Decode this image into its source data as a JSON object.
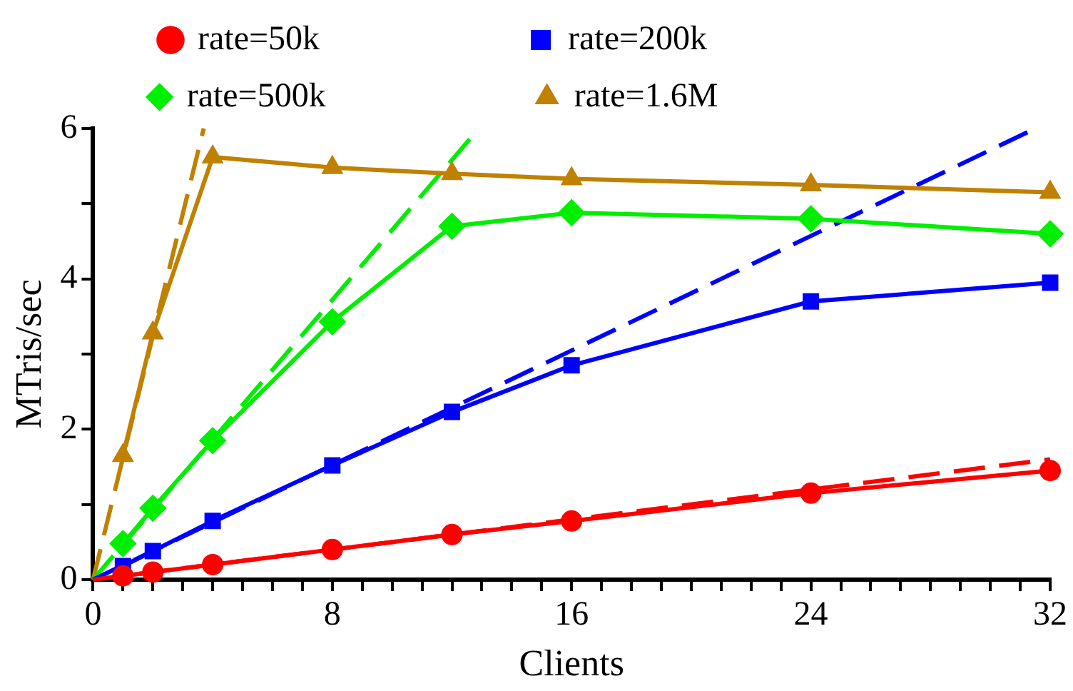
{
  "chart_data": {
    "type": "line",
    "xlabel": "Clients",
    "ylabel": "MTris/sec",
    "legend": "top",
    "grid": false,
    "x": [
      1,
      2,
      4,
      8,
      12,
      16,
      24,
      32
    ],
    "xlim": [
      0,
      32
    ],
    "xticks": [
      0,
      {
        "value": 1,
        "label": null
      },
      {
        "value": 2,
        "label": null
      },
      {
        "value": 3,
        "label": null
      },
      {
        "value": 4,
        "label": null
      },
      {
        "value": 5,
        "label": null
      },
      {
        "value": 6,
        "label": null
      },
      {
        "value": 7,
        "label": null
      },
      8,
      {
        "value": 9,
        "label": null
      },
      {
        "value": 10,
        "label": null
      },
      {
        "value": 11,
        "label": null
      },
      {
        "value": 12,
        "label": null
      },
      {
        "value": 13,
        "label": null
      },
      {
        "value": 14,
        "label": null
      },
      {
        "value": 15,
        "label": null
      },
      16,
      {
        "value": 17,
        "label": null
      },
      {
        "value": 18,
        "label": null
      },
      {
        "value": 19,
        "label": null
      },
      {
        "value": 20,
        "label": null
      },
      {
        "value": 21,
        "label": null
      },
      {
        "value": 22,
        "label": null
      },
      {
        "value": 23,
        "label": null
      },
      24,
      {
        "value": 25,
        "label": null
      },
      {
        "value": 26,
        "label": null
      },
      {
        "value": 27,
        "label": null
      },
      {
        "value": 28,
        "label": null
      },
      {
        "value": 29,
        "label": null
      },
      {
        "value": 30,
        "label": null
      },
      {
        "value": 31,
        "label": null
      },
      32
    ],
    "ylim": [
      0,
      6
    ],
    "yticks": [
      0,
      {
        "value": 1,
        "label": null
      },
      2,
      {
        "value": 3,
        "label": null
      },
      4,
      {
        "value": 5,
        "label": null
      },
      6
    ],
    "series": [
      {
        "name": "rate=50k",
        "color": "#ff0000",
        "marker": "circle",
        "line_style": "solid",
        "values": [
          0.05,
          0.1,
          0.2,
          0.4,
          0.6,
          0.78,
          1.15,
          1.45
        ]
      },
      {
        "name": "rate=200k",
        "color": "#0000ff",
        "marker": "square",
        "line_style": "solid",
        "values": [
          0.18,
          0.38,
          0.78,
          1.52,
          2.23,
          2.85,
          3.7,
          3.95
        ]
      },
      {
        "name": "rate=500k",
        "color": "#00ee00",
        "marker": "diamond",
        "line_style": "solid",
        "values": [
          0.48,
          0.95,
          1.85,
          3.43,
          4.7,
          4.88,
          4.8,
          4.6
        ]
      },
      {
        "name": "rate=1.6M",
        "color": "#c08000",
        "marker": "triangle",
        "line_style": "solid",
        "values": [
          1.65,
          3.28,
          5.62,
          5.48,
          5.4,
          5.33,
          5.25,
          5.15
        ]
      },
      {
        "type": "line",
        "color": "#ff0000",
        "marker": "none",
        "line_style": "dashed",
        "x": [
          0,
          32
        ],
        "values": [
          0,
          1.6
        ]
      },
      {
        "type": "line",
        "color": "#0000ff",
        "marker": "none",
        "line_style": "dashed",
        "x": [
          0,
          31.5
        ],
        "values": [
          0,
          6
        ]
      },
      {
        "type": "line",
        "color": "#00ee00",
        "marker": "none",
        "line_style": "dashed",
        "x": [
          0,
          12.9
        ],
        "values": [
          0,
          6
        ]
      },
      {
        "type": "line",
        "color": "#c08000",
        "marker": "none",
        "line_style": "dashed",
        "x": [
          0,
          3.7
        ],
        "values": [
          0,
          6
        ]
      }
    ]
  }
}
